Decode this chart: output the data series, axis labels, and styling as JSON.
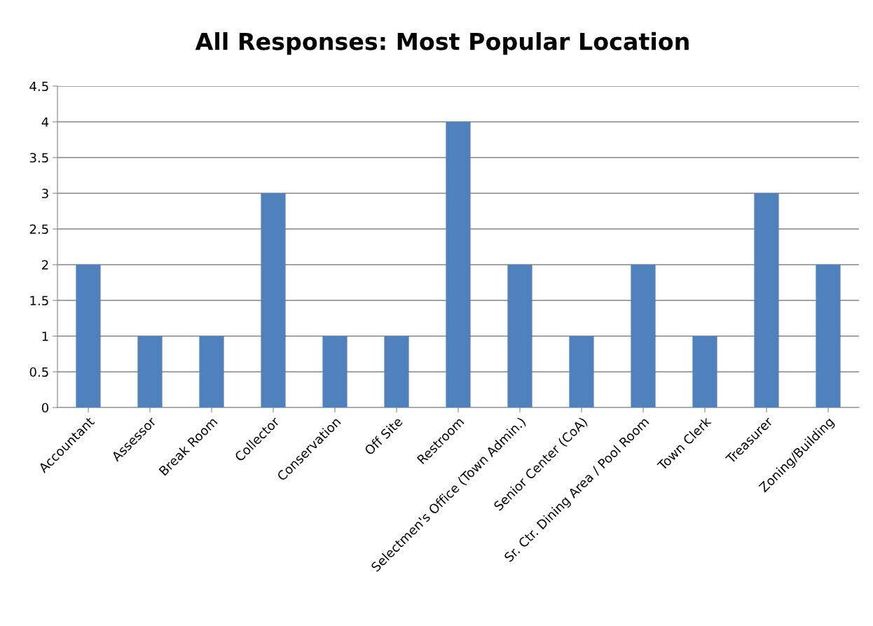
{
  "chart_data": {
    "type": "bar",
    "title": "All Responses: Most Popular Location",
    "categories": [
      "Accountant",
      "Assessor",
      "Break Room",
      "Collector",
      "Conservation",
      "Off Site",
      "Restroom",
      "Selectmen's Office (Town Admin.)",
      "Senior Center (CoA)",
      "Sr. Ctr. Dining Area / Pool Room",
      "Town Clerk",
      "Treasurer",
      "Zoning/Building"
    ],
    "values": [
      2,
      1,
      1,
      3,
      1,
      1,
      4,
      2,
      1,
      2,
      1,
      3,
      2
    ],
    "color": "#4f81bd",
    "ylim": [
      0,
      4.5
    ],
    "yticks": [
      0,
      0.5,
      1,
      1.5,
      2,
      2.5,
      3,
      3.5,
      4,
      4.5
    ],
    "grid": "y"
  }
}
